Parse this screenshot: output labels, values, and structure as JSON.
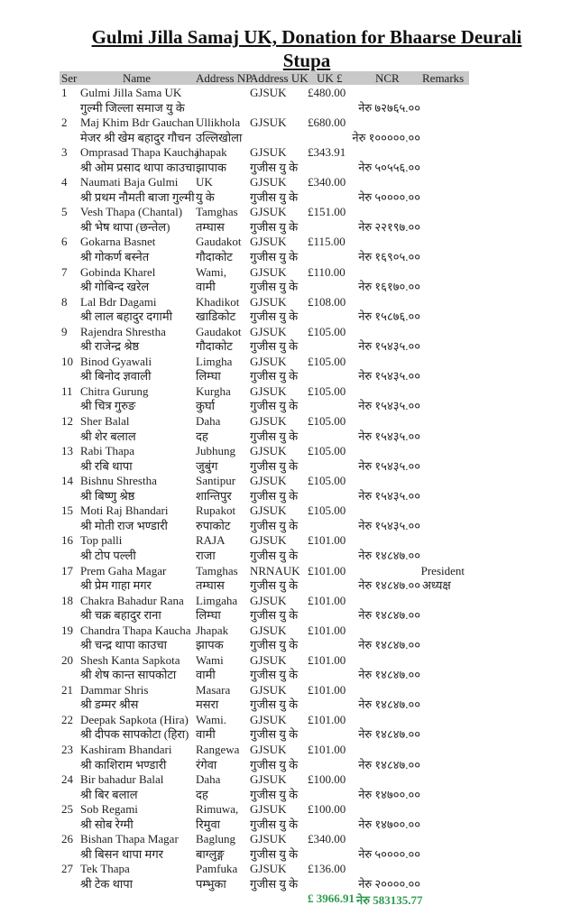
{
  "title_line1": "Gulmi Jilla Samaj UK, Donation for Bhaarse Deurali",
  "title_line2": "Stupa",
  "header": {
    "ser": "Ser",
    "name": "Name",
    "address_np": "Address NP",
    "address_uk": "Address UK",
    "uk_gbp": "UK £",
    "ncr": "NCR",
    "remarks": "Remarks"
  },
  "rows": [
    {
      "ser": "1",
      "name_en": "Gulmi Jilla Sama UK",
      "name_np": "गुल्मी जिल्ला समाज यु के",
      "addr_np_en": "",
      "addr_np_np": "",
      "addr_uk_en": "GJSUK",
      "addr_uk_np": "",
      "gbp": "£480.00",
      "ncr": "नेरु ७२७६५.००",
      "remark_en": "",
      "remark_np": ""
    },
    {
      "ser": "2",
      "name_en": "Maj Khim Bdr Gauchan",
      "name_np": "मेजर श्री खेम बहादुर गौचन",
      "addr_np_en": "Ullikhola",
      "addr_np_np": "उल्लिखोला",
      "addr_uk_en": "GJSUK",
      "addr_uk_np": "",
      "gbp": "£680.00",
      "ncr": "नेरु १०००००.००",
      "remark_en": "",
      "remark_np": ""
    },
    {
      "ser": "3",
      "name_en": "Omprasad Thapa Kaucha",
      "name_np": "श्री ओम प्रसाद थापा काउचा",
      "addr_np_en": "jhapak",
      "addr_np_np": "झापाक",
      "addr_uk_en": "GJSUK",
      "addr_uk_np": "गुजीस यु के",
      "gbp": "£343.91",
      "ncr": "नेरु ५०५५६.००",
      "remark_en": "",
      "remark_np": ""
    },
    {
      "ser": "4",
      "name_en": "Naumati Baja Gulmi",
      "name_np": "श्री प्रथम नौमती बाजा गुल्मी",
      "addr_np_en": "UK",
      "addr_np_np": "यु के",
      "addr_uk_en": "GJSUK",
      "addr_uk_np": "गुजीस यु के",
      "gbp": "£340.00",
      "ncr": "नेरु ५००००.००",
      "remark_en": "",
      "remark_np": ""
    },
    {
      "ser": "5",
      "name_en": "Vesh Thapa (Chantal)",
      "name_np": "श्री भेष थापा (छन्तेल)",
      "addr_np_en": "Tamghas",
      "addr_np_np": "तम्घास",
      "addr_uk_en": "GJSUK",
      "addr_uk_np": "गुजीस यु के",
      "gbp": "£151.00",
      "ncr": "नेरु २२१९७.००",
      "remark_en": "",
      "remark_np": ""
    },
    {
      "ser": "6",
      "name_en": "Gokarna Basnet",
      "name_np": "श्री गोकर्ण बस्नेत",
      "addr_np_en": "Gaudakot",
      "addr_np_np": "गौदाकोट",
      "addr_uk_en": "GJSUK",
      "addr_uk_np": "गुजीस यु के",
      "gbp": "£115.00",
      "ncr": "नेरु १६९०५.००",
      "remark_en": "",
      "remark_np": ""
    },
    {
      "ser": "7",
      "name_en": "Gobinda Kharel",
      "name_np": "श्री गोबिन्द खरेल",
      "addr_np_en": "Wami,",
      "addr_np_np": "वामी",
      "addr_uk_en": "GJSUK",
      "addr_uk_np": "गुजीस यु के",
      "gbp": "£110.00",
      "ncr": "नेरु १६१७०.००",
      "remark_en": "",
      "remark_np": ""
    },
    {
      "ser": "8",
      "name_en": "Lal Bdr Dagami",
      "name_np": "श्री लाल बहादुर दगामी",
      "addr_np_en": "Khadikot",
      "addr_np_np": "खाडिकोट",
      "addr_uk_en": "GJSUK",
      "addr_uk_np": "गुजीस यु के",
      "gbp": "£108.00",
      "ncr": "नेरु १५८७६.००",
      "remark_en": "",
      "remark_np": ""
    },
    {
      "ser": "9",
      "name_en": "Rajendra Shrestha",
      "name_np": "श्री राजेन्द्र श्रेष्ठ",
      "addr_np_en": "Gaudakot",
      "addr_np_np": "गौदाकोट",
      "addr_uk_en": "GJSUK",
      "addr_uk_np": "गुजीस यु के",
      "gbp": "£105.00",
      "ncr": "नेरु १५४३५.००",
      "remark_en": "",
      "remark_np": ""
    },
    {
      "ser": "10",
      "name_en": "Binod Gyawali",
      "name_np": "श्री बिनोद ज्ञवाली",
      "addr_np_en": "Limgha",
      "addr_np_np": "लिम्घा",
      "addr_uk_en": "GJSUK",
      "addr_uk_np": "गुजीस यु के",
      "gbp": "£105.00",
      "ncr": "नेरु १५४३५.००",
      "remark_en": "",
      "remark_np": ""
    },
    {
      "ser": "11",
      "name_en": "Chitra Gurung",
      "name_np": "श्री चित्र गुरुङ",
      "addr_np_en": "Kurgha",
      "addr_np_np": "कुर्घा",
      "addr_uk_en": "GJSUK",
      "addr_uk_np": "गुजीस यु के",
      "gbp": "£105.00",
      "ncr": "नेरु १५४३५.००",
      "remark_en": "",
      "remark_np": ""
    },
    {
      "ser": "12",
      "name_en": "Sher Balal",
      "name_np": "श्री शेर बलाल",
      "addr_np_en": "Daha",
      "addr_np_np": "दह",
      "addr_uk_en": "GJSUK",
      "addr_uk_np": "गुजीस यु के",
      "gbp": "£105.00",
      "ncr": "नेरु १५४३५.००",
      "remark_en": "",
      "remark_np": ""
    },
    {
      "ser": "13",
      "name_en": "Rabi Thapa",
      "name_np": "श्री रबि थापा",
      "addr_np_en": "Jubhung",
      "addr_np_np": "जुबुंग",
      "addr_uk_en": "GJSUK",
      "addr_uk_np": "गुजीस यु के",
      "gbp": "£105.00",
      "ncr": "नेरु १५४३५.००",
      "remark_en": "",
      "remark_np": ""
    },
    {
      "ser": "14",
      "name_en": "Bishnu Shrestha",
      "name_np": "श्री बिष्णु श्रेष्ठ",
      "addr_np_en": "Santipur",
      "addr_np_np": "शान्तिपुर",
      "addr_uk_en": "GJSUK",
      "addr_uk_np": "गुजीस यु के",
      "gbp": "£105.00",
      "ncr": "नेरु १५४३५.००",
      "remark_en": "",
      "remark_np": ""
    },
    {
      "ser": "15",
      "name_en": "Moti Raj Bhandari",
      "name_np": "श्री मोती राज भण्डारी",
      "addr_np_en": "Rupakot",
      "addr_np_np": "रुपाकोट",
      "addr_uk_en": "GJSUK",
      "addr_uk_np": "गुजीस यु के",
      "gbp": "£105.00",
      "ncr": "नेरु १५४३५.००",
      "remark_en": "",
      "remark_np": ""
    },
    {
      "ser": "16",
      "name_en": "Top palli",
      "name_np": "श्री टोप पल्ली",
      "addr_np_en": "RAJA",
      "addr_np_np": "राजा",
      "addr_uk_en": "GJSUK",
      "addr_uk_np": "गुजीस यु के",
      "gbp": "£101.00",
      "ncr": "नेरु १४८४७.००",
      "remark_en": "",
      "remark_np": ""
    },
    {
      "ser": "17",
      "name_en": "Prem Gaha Magar",
      "name_np": "श्री प्रेम गाहा मगर",
      "addr_np_en": "Tamghas",
      "addr_np_np": "तम्घास",
      "addr_uk_en": "NRNAUK",
      "addr_uk_np": "गुजीस यु के",
      "gbp": "£101.00",
      "ncr": "नेरु १४८४७.००",
      "remark_en": "President",
      "remark_np": "अध्यक्ष"
    },
    {
      "ser": "18",
      "name_en": "Chakra Bahadur Rana",
      "name_np": "श्री चक्र बहादुर राना",
      "addr_np_en": "Limgaha",
      "addr_np_np": "लिम्घा",
      "addr_uk_en": "GJSUK",
      "addr_uk_np": "गुजीस यु के",
      "gbp": "£101.00",
      "ncr": "नेरु १४८४७.००",
      "remark_en": "",
      "remark_np": ""
    },
    {
      "ser": "19",
      "name_en": "Chandra Thapa Kaucha",
      "name_np": "श्री चन्द्र थापा काउचा",
      "addr_np_en": "Jhapak",
      "addr_np_np": "झापक",
      "addr_uk_en": "GJSUK",
      "addr_uk_np": "गुजीस यु के",
      "gbp": "£101.00",
      "ncr": "नेरु १४८४७.००",
      "remark_en": "",
      "remark_np": ""
    },
    {
      "ser": "20",
      "name_en": "Shesh Kanta Sapkota",
      "name_np": "श्री शेष कान्त सापकोटा",
      "addr_np_en": "Wami",
      "addr_np_np": "वामी",
      "addr_uk_en": "GJSUK",
      "addr_uk_np": "गुजीस यु के",
      "gbp": "£101.00",
      "ncr": "नेरु १४८४७.००",
      "remark_en": "",
      "remark_np": ""
    },
    {
      "ser": "21",
      "name_en": "Dammar Shris",
      "name_np": "श्री डम्मर श्रीस",
      "addr_np_en": "Masara",
      "addr_np_np": "मसरा",
      "addr_uk_en": "GJSUK",
      "addr_uk_np": "गुजीस यु के",
      "gbp": "£101.00",
      "ncr": "नेरु १४८४७.००",
      "remark_en": "",
      "remark_np": ""
    },
    {
      "ser": "22",
      "name_en": "Deepak Sapkota (Hira)",
      "name_np": "श्री दीपक सापकोटा (हिरा)",
      "addr_np_en": "Wami.",
      "addr_np_np": "वामी",
      "addr_uk_en": "GJSUK",
      "addr_uk_np": "गुजीस यु के",
      "gbp": "£101.00",
      "ncr": "नेरु १४८४७.००",
      "remark_en": "",
      "remark_np": ""
    },
    {
      "ser": "23",
      "name_en": "Kashiram Bhandari",
      "name_np": "श्री काशिराम भण्डारी",
      "addr_np_en": "Rangewa",
      "addr_np_np": "रंगेवा",
      "addr_uk_en": "GJSUK",
      "addr_uk_np": "गुजीस यु के",
      "gbp": "£101.00",
      "ncr": "नेरु १४८४७.००",
      "remark_en": "",
      "remark_np": ""
    },
    {
      "ser": "24",
      "name_en": "Bir bahadur Balal",
      "name_np": "श्री बिर बलाल",
      "addr_np_en": "Daha",
      "addr_np_np": "दह",
      "addr_uk_en": "GJSUK",
      "addr_uk_np": "गुजीस यु के",
      "gbp": "£100.00",
      "ncr": "नेरु १४७००.००",
      "remark_en": "",
      "remark_np": ""
    },
    {
      "ser": "25",
      "name_en": "Sob Regami",
      "name_np": "श्री सोब रेग्मी",
      "addr_np_en": "Rimuwa,",
      "addr_np_np": "रिमुवा",
      "addr_uk_en": "GJSUK",
      "addr_uk_np": "गुजीस यु के",
      "gbp": "£100.00",
      "ncr": "नेरु १४७००.००",
      "remark_en": "",
      "remark_np": ""
    },
    {
      "ser": "26",
      "name_en": "Bishan Thapa Magar",
      "name_np": "श्री बिसन थापा मगर",
      "addr_np_en": "Baglung",
      "addr_np_np": "बाग्लुङ्ग",
      "addr_uk_en": "GJSUK",
      "addr_uk_np": "गुजीस यु के",
      "gbp": "£340.00",
      "ncr": "नेरु ५००००.००",
      "remark_en": "",
      "remark_np": ""
    },
    {
      "ser": "27",
      "name_en": "Tek Thapa",
      "name_np": "श्री टेक थापा",
      "addr_np_en": "Pamfuka",
      "addr_np_np": "पम्भुका",
      "addr_uk_en": "GJSUK",
      "addr_uk_np": "गुजीस यु के",
      "gbp": "£136.00",
      "ncr": "नेरु २००००.००",
      "remark_en": "",
      "remark_np": ""
    }
  ],
  "totals": {
    "gbp": "£ 3966.91",
    "ncr": "नेरु 583135.77",
    "color": "#2e9a4e"
  },
  "colors": {
    "header_bg": "#c9c9c9"
  }
}
